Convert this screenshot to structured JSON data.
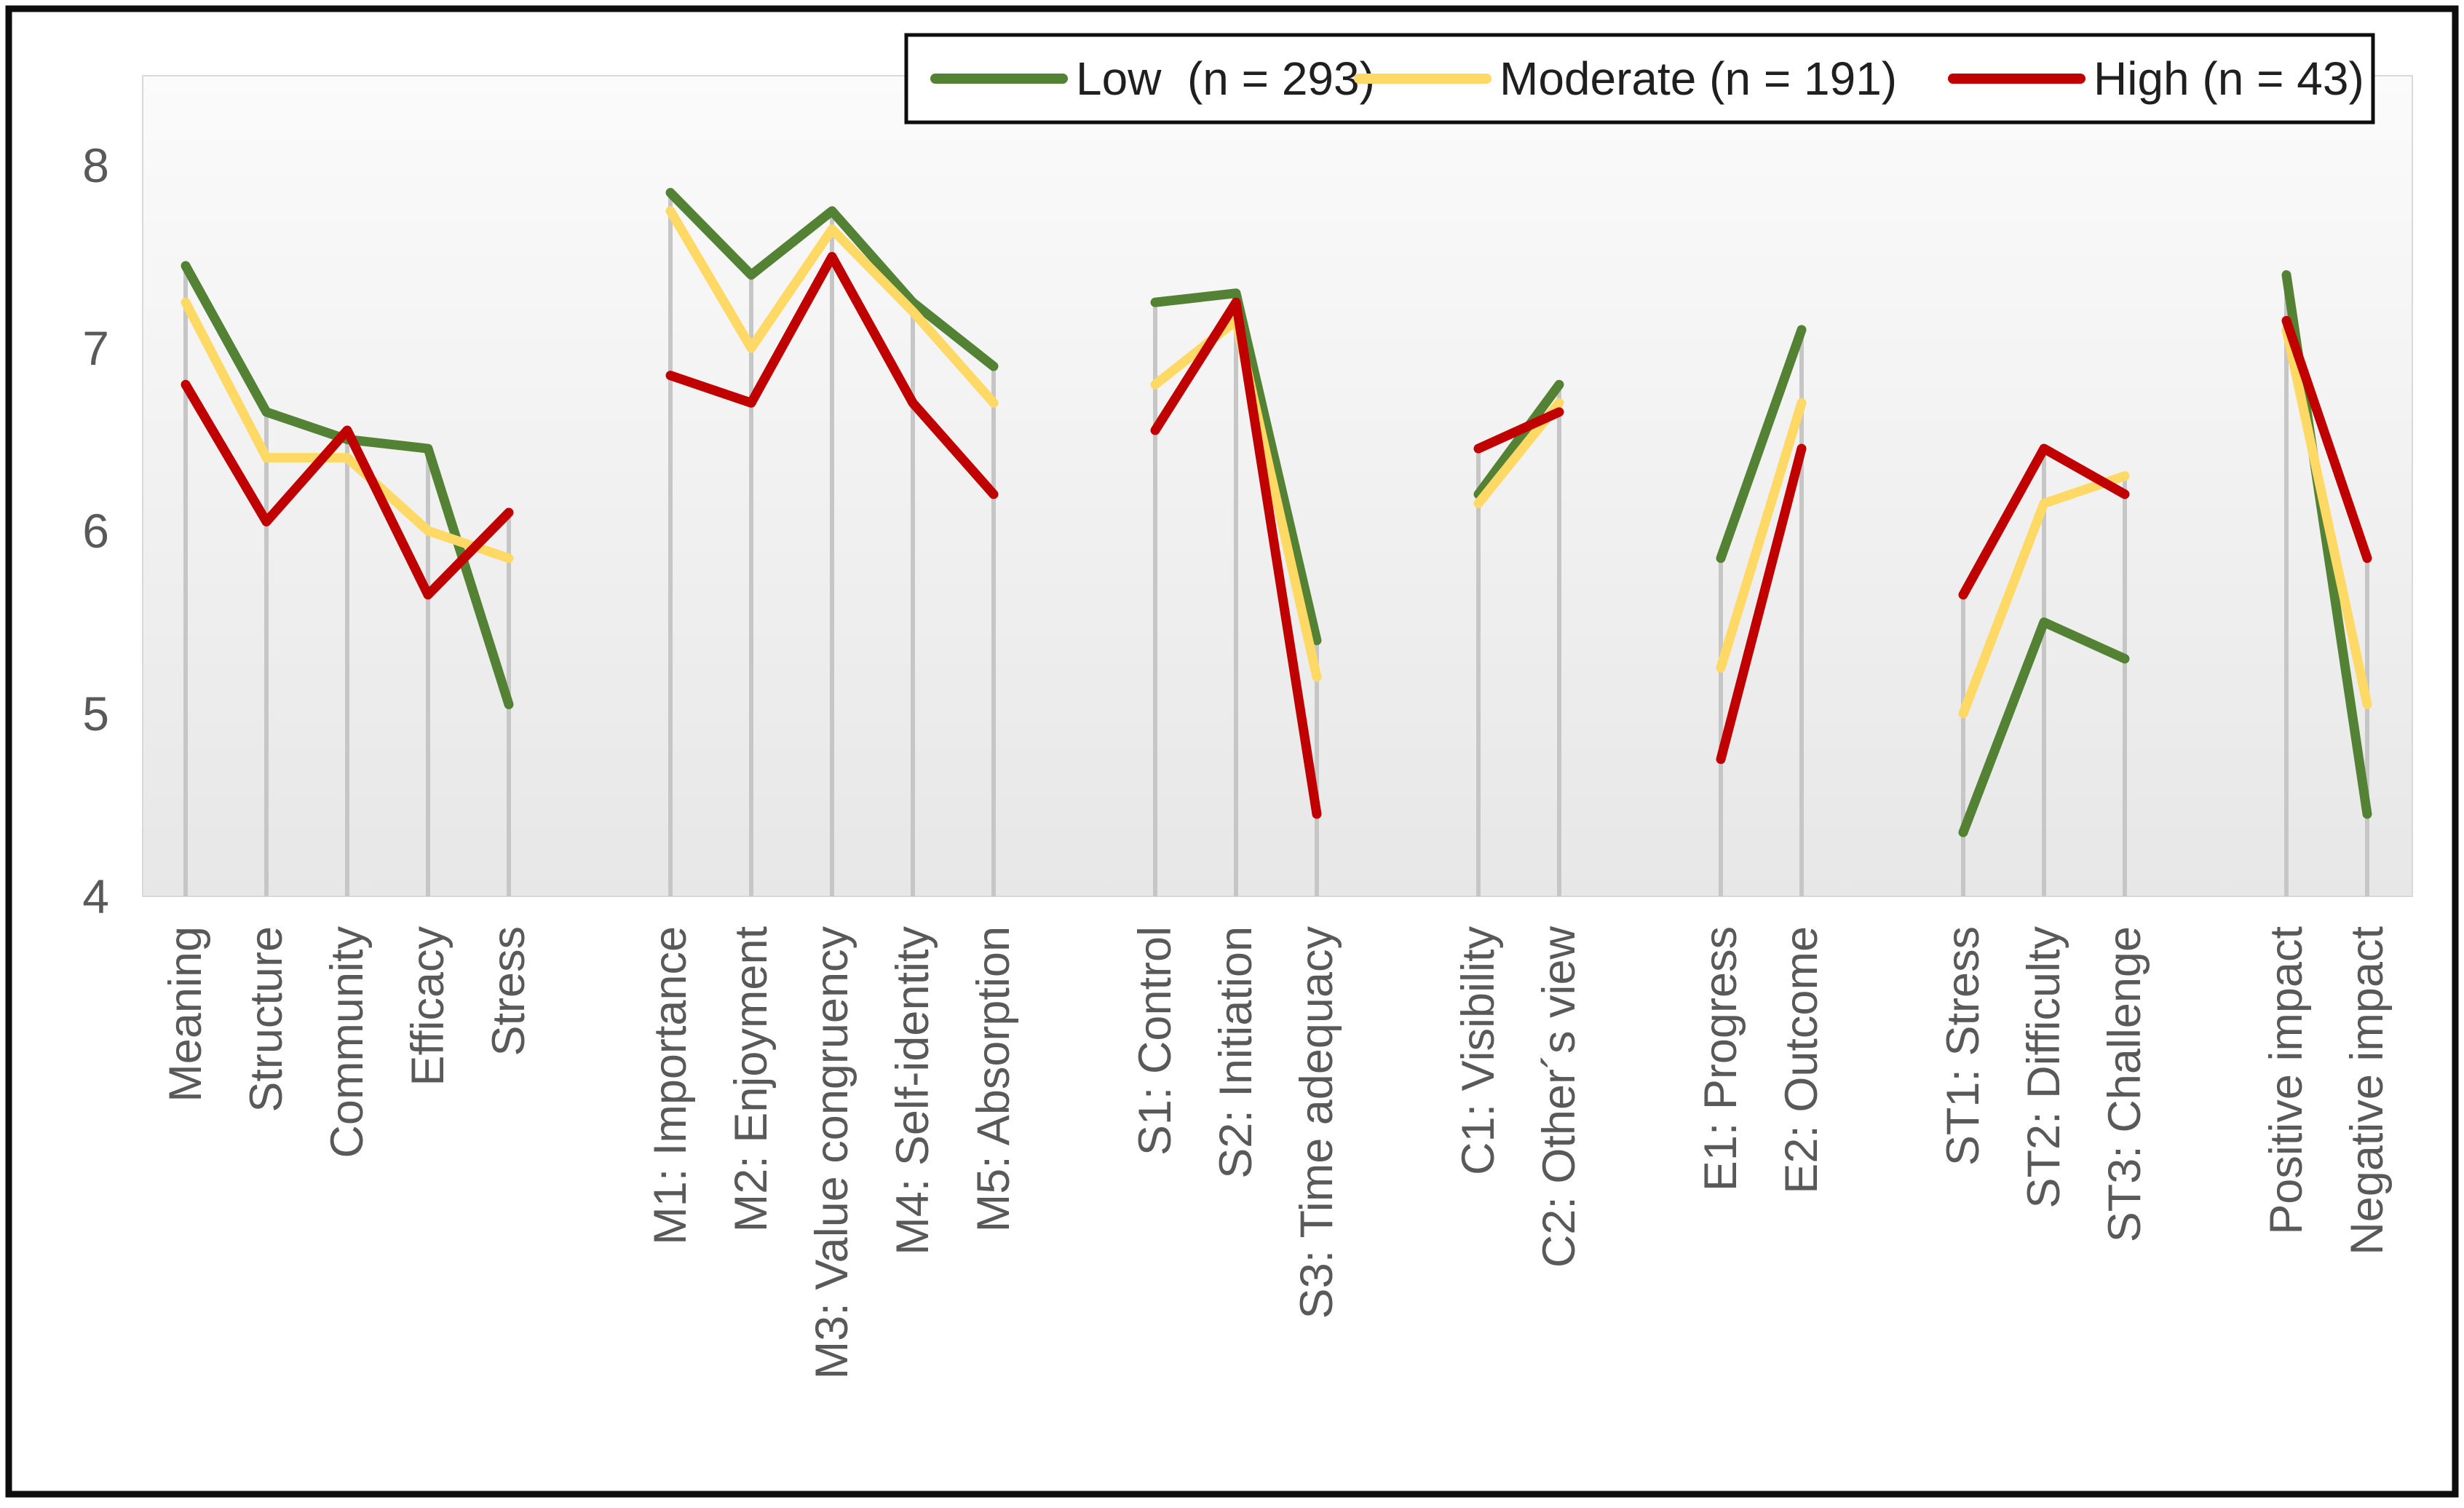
{
  "figure": {
    "border_color": "#0d0d0d",
    "background": "#ffffff",
    "plot_bg_top": "#fbfbfb",
    "plot_bg_bottom": "#e7e7e7",
    "plot_border_color": "#d9d9d9",
    "drop_line_color": "#c6c6c6",
    "axis_text_color": "#595959",
    "legend_text_color": "#1f1f1f"
  },
  "chart_data": {
    "type": "line",
    "title": "",
    "xlabel": "",
    "ylabel": "",
    "ylim": [
      4,
      8.5
    ],
    "grid": "vertical drop lines from each category maximum to the x-axis",
    "y_axis": {
      "ticks": [
        8,
        7,
        6,
        5,
        4
      ],
      "min": 4,
      "max": 8.5
    },
    "x_axis": {
      "label_rotation": -90,
      "group_gap_slots": 1,
      "groups": [
        {
          "name": "group-1",
          "categories": [
            "Meaning",
            "Structure",
            "Community",
            "Efficacy",
            "Stress"
          ]
        },
        {
          "name": "group-2",
          "categories": [
            "M1: Importance",
            "M2: Enjoyment",
            "M3: Value congruency",
            "M4: Self-identity",
            "M5: Absorption"
          ]
        },
        {
          "name": "group-3",
          "categories": [
            "S1: Control",
            "S2: Initiation",
            "S3: Time adequacy"
          ]
        },
        {
          "name": "group-4",
          "categories": [
            "C1: Visibility",
            "C2: Other´s view"
          ]
        },
        {
          "name": "group-5",
          "categories": [
            "E1: Progress",
            "E2: Outcome"
          ]
        },
        {
          "name": "group-6",
          "categories": [
            "ST1: Stress",
            "ST2: Difficulty",
            "ST3: Challenge"
          ]
        },
        {
          "name": "group-7",
          "categories": [
            "Positive impact",
            "Negative impact"
          ]
        }
      ]
    },
    "series": [
      {
        "name": "Low  (n = 293)",
        "color": "#548235",
        "values_by_group": [
          [
            7.45,
            6.65,
            6.5,
            6.45,
            5.05
          ],
          [
            7.85,
            7.4,
            7.75,
            7.25,
            6.9
          ],
          [
            7.25,
            7.3,
            5.4
          ],
          [
            6.2,
            6.8
          ],
          [
            5.85,
            7.1
          ],
          [
            4.35,
            5.5,
            5.3
          ],
          [
            7.4,
            4.45
          ]
        ]
      },
      {
        "name": "Moderate (n = 191)",
        "color": "#ffd966",
        "values_by_group": [
          [
            7.25,
            6.4,
            6.4,
            6.0,
            5.85
          ],
          [
            7.75,
            7.0,
            7.65,
            7.2,
            6.7
          ],
          [
            6.8,
            7.15,
            5.2
          ],
          [
            6.15,
            6.7
          ],
          [
            5.25,
            6.7
          ],
          [
            5.0,
            6.15,
            6.3
          ],
          [
            7.1,
            5.05
          ]
        ]
      },
      {
        "name": "High (n = 43)",
        "color": "#c00000",
        "values_by_group": [
          [
            6.8,
            6.05,
            6.55,
            5.65,
            6.1
          ],
          [
            6.85,
            6.7,
            7.5,
            6.7,
            6.2
          ],
          [
            6.55,
            7.25,
            4.45
          ],
          [
            6.45,
            6.65
          ],
          [
            4.75,
            6.45
          ],
          [
            5.65,
            6.45,
            6.2
          ],
          [
            7.15,
            5.85
          ]
        ]
      }
    ],
    "legend": {
      "position": "top",
      "border_color": "#0d0d0d",
      "entries": [
        {
          "label": "Low  (n = 293)",
          "color": "#548235"
        },
        {
          "label": "Moderate (n = 191)",
          "color": "#ffd966"
        },
        {
          "label": "High (n = 43)",
          "color": "#c00000"
        }
      ]
    }
  }
}
